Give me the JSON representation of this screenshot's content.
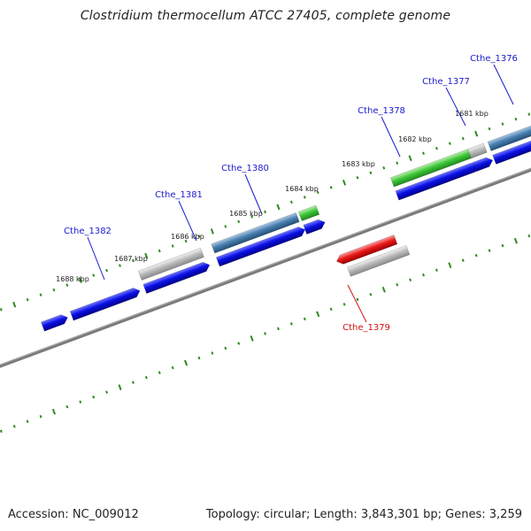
{
  "title": "Clostridium thermocellum ATCC 27405, complete genome",
  "footer": {
    "accession": "Accession: NC_009012",
    "summary": "Topology: circular; Length: 3,843,301 bp; Genes: 3,259"
  },
  "colors": {
    "backbone": "#7a7a7a",
    "tick": "#2e8b1e",
    "cds": "#0a10e6",
    "label_forward": "#1a1acc",
    "label_reverse": "#d41010",
    "feature_green": "#3fc83a",
    "feature_steelblue": "#4a7fb0",
    "feature_gray": "#bdbdbd",
    "feature_red": "#e81a1a"
  },
  "kbp_labels": [
    "1681 kbp",
    "1682 kbp",
    "1683 kbp",
    "1684 kbp",
    "1685 kbp",
    "1686 kbp",
    "1687 kbp",
    "1688 kbp"
  ],
  "gene_labels": [
    {
      "text": "Cthe_1376",
      "strand": "forward"
    },
    {
      "text": "Cthe_1377",
      "strand": "forward"
    },
    {
      "text": "Cthe_1378",
      "strand": "forward"
    },
    {
      "text": "Cthe_1380",
      "strand": "forward"
    },
    {
      "text": "Cthe_1381",
      "strand": "forward"
    },
    {
      "text": "Cthe_1382",
      "strand": "forward"
    },
    {
      "text": "Cthe_1379",
      "strand": "reverse"
    }
  ]
}
